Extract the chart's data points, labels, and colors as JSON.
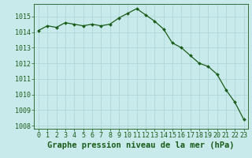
{
  "x": [
    0,
    1,
    2,
    3,
    4,
    5,
    6,
    7,
    8,
    9,
    10,
    11,
    12,
    13,
    14,
    15,
    16,
    17,
    18,
    19,
    20,
    21,
    22,
    23
  ],
  "y": [
    1014.1,
    1014.4,
    1014.3,
    1014.6,
    1014.5,
    1014.4,
    1014.5,
    1014.4,
    1014.5,
    1014.9,
    1015.2,
    1015.5,
    1015.1,
    1014.7,
    1014.2,
    1013.3,
    1013.0,
    1012.5,
    1012.0,
    1011.8,
    1011.3,
    1010.3,
    1009.5,
    1008.4
  ],
  "line_color": "#1a5c1a",
  "marker_color": "#1a5c1a",
  "bg_color": "#c8eaea",
  "grid_color": "#b0d8d8",
  "title": "Graphe pression niveau de la mer (hPa)",
  "ylim": [
    1007.8,
    1015.8
  ],
  "xlim": [
    -0.5,
    23.5
  ],
  "yticks": [
    1008,
    1009,
    1010,
    1011,
    1012,
    1013,
    1014,
    1015
  ],
  "xtick_labels": [
    "0",
    "1",
    "2",
    "3",
    "4",
    "5",
    "6",
    "7",
    "8",
    "9",
    "10",
    "11",
    "12",
    "13",
    "14",
    "15",
    "16",
    "17",
    "18",
    "19",
    "20",
    "21",
    "22",
    "23"
  ],
  "title_fontsize": 7.5,
  "tick_fontsize": 6.0,
  "marker_size": 2.0,
  "line_width": 0.9
}
